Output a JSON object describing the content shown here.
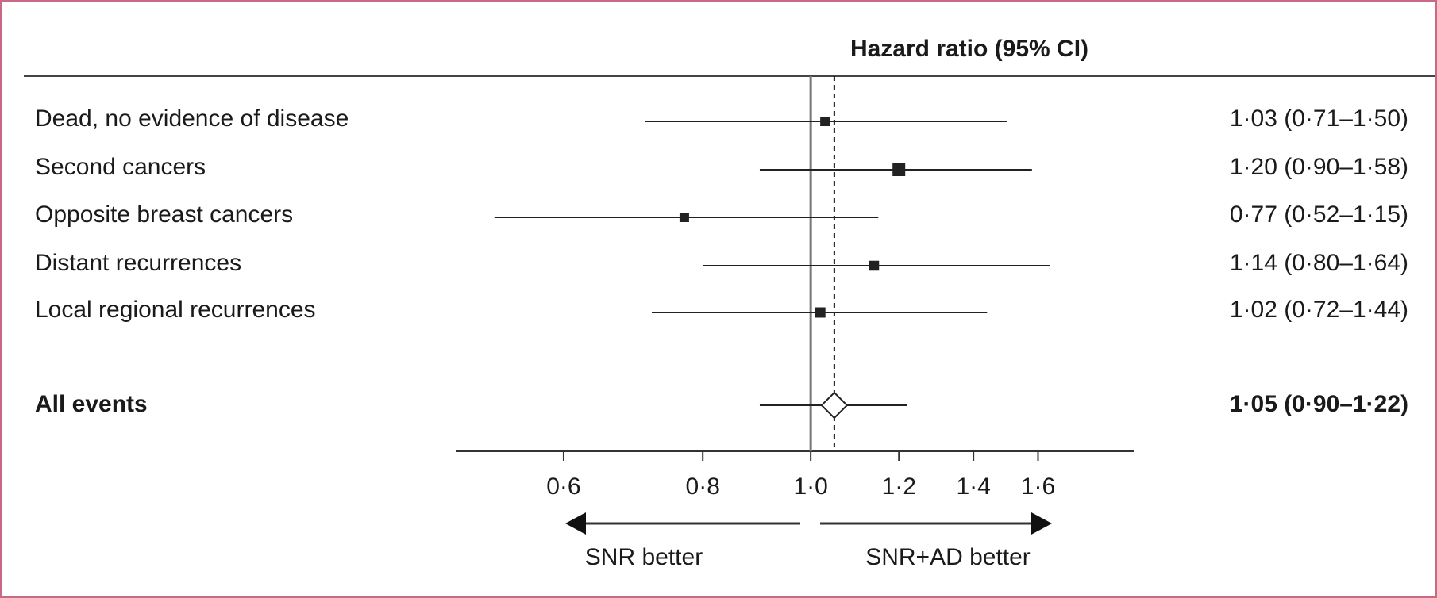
{
  "chart_data": {
    "type": "forest",
    "title": "Hazard ratio (95% CI)",
    "categories": [
      "Dead, no evidence of disease",
      "Second cancers",
      "Opposite breast cancers",
      "Distant recurrences",
      "Local regional recurrences"
    ],
    "values": [
      1.03,
      1.2,
      0.77,
      1.14,
      1.02
    ],
    "lower": [
      0.71,
      0.9,
      0.52,
      0.8,
      0.72
    ],
    "upper": [
      1.5,
      1.58,
      1.15,
      1.64,
      1.44
    ],
    "value_labels": [
      "1·03 (0·71–1·50)",
      "1·20 (0·90–1·58)",
      "0·77 (0·52–1·15)",
      "1·14 (0·80–1·64)",
      "1·02 (0·72–1·44)"
    ],
    "summary": {
      "name": "All events",
      "value": 1.05,
      "lower": 0.9,
      "upper": 1.22,
      "value_label": "1·05 (0·90–1·22)"
    },
    "reference_line": 1,
    "xlim": [
      0.48,
      1.95
    ],
    "log_x": true,
    "xticks": [
      {
        "value": 0.6,
        "label": "0·6"
      },
      {
        "value": 0.8,
        "label": "0·8"
      },
      {
        "value": 1.0,
        "label": "1·0"
      },
      {
        "value": 1.2,
        "label": "1·2"
      },
      {
        "value": 1.4,
        "label": "1·4"
      },
      {
        "value": 1.6,
        "label": "1·6"
      }
    ],
    "direction_labels": {
      "left": "SNR better",
      "right": "SNR+AD better"
    },
    "color": "#222222"
  }
}
